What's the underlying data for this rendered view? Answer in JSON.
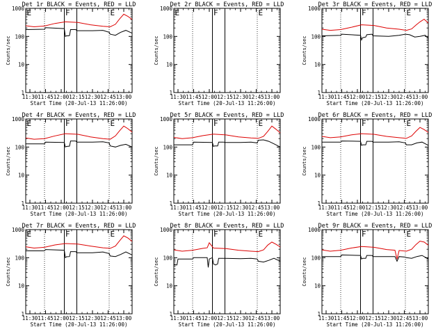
{
  "chart_data": [
    {
      "type": "line",
      "title": "Det 1r BLACK = Events, RED = LLD",
      "xlabel": "Start Time (20-Jul-13 11:26:00)",
      "ylabel": "Counts/sec",
      "x_ticks": [
        "11:30",
        "11:45",
        "12:00",
        "12:15",
        "12:30",
        "12:45",
        "13:00"
      ],
      "y_ticks": [
        "1",
        "10",
        "100",
        "1000"
      ],
      "ylim": [
        1,
        1000
      ],
      "y_scale": "log",
      "markers": [
        "E",
        "F",
        "E"
      ],
      "series": [
        {
          "color": "#000000",
          "x": [
            "11:26",
            "11:44",
            "11:45",
            "12:03",
            "12:04",
            "12:05",
            "12:07",
            "12:08",
            "12:09",
            "12:14",
            "12:15",
            "12:30",
            "12:40",
            "12:46",
            "12:47",
            "12:52",
            "12:57",
            "13:02",
            "13:08"
          ],
          "values": [
            175,
            180,
            205,
            190,
            100,
            105,
            105,
            108,
            175,
            175,
            160,
            160,
            165,
            140,
            120,
            110,
            140,
            165,
            130
          ]
        },
        {
          "color": "#dd0000",
          "x": [
            "11:26",
            "11:34",
            "11:44",
            "11:54",
            "12:04",
            "12:16",
            "12:28",
            "12:40",
            "12:47",
            "12:52",
            "12:56",
            "13:00",
            "13:04",
            "13:08"
          ],
          "values": [
            240,
            220,
            235,
            290,
            330,
            315,
            260,
            230,
            220,
            270,
            420,
            620,
            520,
            400
          ]
        }
      ]
    },
    {
      "type": "line",
      "title": "Det 2r BLACK = Events, RED = LLD",
      "xlabel": "Start Time (20-Jul-13 11:26:00)",
      "ylabel": "Counts/sec",
      "x_ticks": [
        "11:30",
        "11:45",
        "12:00",
        "12:15",
        "12:30",
        "12:45",
        "13:00"
      ],
      "y_ticks": [
        "1",
        "10",
        "100",
        "1000"
      ],
      "ylim": [
        1,
        1000
      ],
      "y_scale": "log",
      "markers": [
        "E",
        "F",
        "E"
      ],
      "series": []
    },
    {
      "type": "line",
      "title": "Det 3r BLACK = Events, RED = LLD",
      "xlabel": "Start Time (20-Jul-13 11:26:00)",
      "ylabel": "Counts/sec",
      "x_ticks": [
        "11:30",
        "11:45",
        "12:00",
        "12:15",
        "12:30",
        "12:45",
        "13:00"
      ],
      "y_ticks": [
        "1",
        "10",
        "100",
        "1000"
      ],
      "ylim": [
        1,
        1000
      ],
      "y_scale": "log",
      "markers": [
        "F",
        "E"
      ],
      "series": [
        {
          "color": "#000000",
          "x": [
            "11:26",
            "11:44",
            "11:45",
            "12:03",
            "12:04",
            "12:05",
            "12:08",
            "12:09",
            "12:14",
            "12:15",
            "12:30",
            "12:40",
            "12:46",
            "12:50",
            "12:55",
            "13:00",
            "13:05",
            "13:08"
          ],
          "values": [
            105,
            110,
            120,
            110,
            75,
            90,
            95,
            115,
            120,
            105,
            100,
            110,
            120,
            115,
            95,
            100,
            110,
            85
          ]
        },
        {
          "color": "#dd0000",
          "x": [
            "11:26",
            "11:34",
            "11:44",
            "11:54",
            "12:04",
            "12:16",
            "12:28",
            "12:40",
            "12:47",
            "12:52",
            "12:56",
            "13:00",
            "13:04",
            "13:08"
          ],
          "values": [
            180,
            165,
            175,
            210,
            260,
            245,
            200,
            180,
            165,
            185,
            250,
            330,
            410,
            300
          ]
        }
      ]
    },
    {
      "type": "line",
      "title": "Det 4r BLACK = Events, RED = LLD",
      "xlabel": "Start Time (20-Jul-13 11:26:00)",
      "ylabel": "Counts/sec",
      "x_ticks": [
        "11:30",
        "11:45",
        "12:00",
        "12:15",
        "12:30",
        "12:45",
        "13:00"
      ],
      "y_ticks": [
        "1",
        "10",
        "100",
        "1000"
      ],
      "ylim": [
        1,
        1000
      ],
      "y_scale": "log",
      "markers": [
        "E",
        "F",
        "E"
      ],
      "series": [
        {
          "color": "#000000",
          "x": [
            "11:26",
            "11:44",
            "11:45",
            "12:03",
            "12:04",
            "12:05",
            "12:08",
            "12:09",
            "12:14",
            "12:15",
            "12:30",
            "12:40",
            "12:46",
            "12:47",
            "12:52",
            "12:57",
            "13:02",
            "13:08"
          ],
          "values": [
            130,
            130,
            150,
            145,
            100,
            105,
            108,
            165,
            165,
            150,
            150,
            155,
            140,
            110,
            100,
            115,
            125,
            100
          ]
        },
        {
          "color": "#dd0000",
          "x": [
            "11:26",
            "11:34",
            "11:44",
            "11:54",
            "12:04",
            "12:16",
            "12:28",
            "12:40",
            "12:47",
            "12:52",
            "12:56",
            "13:00",
            "13:04",
            "13:08"
          ],
          "values": [
            210,
            190,
            200,
            250,
            300,
            285,
            230,
            200,
            190,
            250,
            380,
            560,
            450,
            340
          ]
        }
      ]
    },
    {
      "type": "line",
      "title": "Det 5r BLACK = Events, RED = LLD",
      "xlabel": "Start Time (20-Jul-13 11:26:00)",
      "ylabel": "Counts/sec",
      "x_ticks": [
        "11:30",
        "11:45",
        "12:00",
        "12:15",
        "12:30",
        "12:45",
        "13:00"
      ],
      "y_ticks": [
        "1",
        "10",
        "100",
        "1000"
      ],
      "ylim": [
        1,
        1000
      ],
      "y_scale": "log",
      "markers": [
        "F",
        "E"
      ],
      "series": [
        {
          "color": "#000000",
          "x": [
            "11:26",
            "11:44",
            "11:45",
            "12:03",
            "12:04",
            "12:05",
            "12:08",
            "12:09",
            "12:14",
            "12:15",
            "12:30",
            "12:40",
            "12:46",
            "12:47",
            "12:52",
            "12:57",
            "13:02",
            "13:08"
          ],
          "values": [
            120,
            120,
            150,
            145,
            105,
            110,
            110,
            150,
            150,
            145,
            145,
            150,
            140,
            175,
            180,
            160,
            130,
            100
          ]
        },
        {
          "color": "#dd0000",
          "x": [
            "11:26",
            "11:34",
            "11:44",
            "11:54",
            "12:04",
            "12:16",
            "12:28",
            "12:40",
            "12:47",
            "12:52",
            "12:56",
            "13:00",
            "13:04",
            "13:08"
          ],
          "values": [
            220,
            200,
            215,
            255,
            290,
            270,
            230,
            210,
            205,
            240,
            360,
            560,
            430,
            320
          ]
        }
      ]
    },
    {
      "type": "line",
      "title": "Det 6r BLACK = Events, RED = LLD",
      "xlabel": "Start Time (20-Jul-13 11:26:00)",
      "ylabel": "Counts/sec",
      "x_ticks": [
        "11:30",
        "11:45",
        "12:00",
        "12:15",
        "12:30",
        "12:45",
        "13:00"
      ],
      "y_ticks": [
        "1",
        "10",
        "100",
        "1000"
      ],
      "ylim": [
        1,
        1000
      ],
      "y_scale": "log",
      "markers": [
        "F",
        "E"
      ],
      "series": [
        {
          "color": "#000000",
          "x": [
            "11:26",
            "11:44",
            "11:45",
            "12:03",
            "12:04",
            "12:05",
            "12:08",
            "12:09",
            "12:14",
            "12:15",
            "12:30",
            "12:40",
            "12:46",
            "12:47",
            "12:52",
            "12:57",
            "13:02",
            "13:08"
          ],
          "values": [
            150,
            150,
            165,
            160,
            115,
            120,
            120,
            160,
            160,
            150,
            150,
            155,
            140,
            120,
            120,
            140,
            150,
            115
          ]
        },
        {
          "color": "#dd0000",
          "x": [
            "11:26",
            "11:34",
            "11:44",
            "11:54",
            "12:04",
            "12:16",
            "12:28",
            "12:40",
            "12:47",
            "12:52",
            "12:56",
            "13:00",
            "13:04",
            "13:08"
          ],
          "values": [
            240,
            215,
            230,
            270,
            300,
            285,
            240,
            215,
            205,
            250,
            360,
            500,
            420,
            330
          ]
        }
      ]
    },
    {
      "type": "line",
      "title": "Det 7r BLACK = Events, RED = LLD",
      "xlabel": "Start Time (20-Jul-13 11:26:00)",
      "ylabel": "Counts/sec",
      "x_ticks": [
        "11:30",
        "11:45",
        "12:00",
        "12:15",
        "12:30",
        "12:45",
        "13:00"
      ],
      "y_ticks": [
        "1",
        "10",
        "100",
        "1000"
      ],
      "ylim": [
        1,
        1000
      ],
      "y_scale": "log",
      "markers": [
        "E",
        "F",
        "E"
      ],
      "series": [
        {
          "color": "#000000",
          "x": [
            "11:26",
            "11:44",
            "11:45",
            "12:03",
            "12:04",
            "12:05",
            "12:08",
            "12:09",
            "12:14",
            "12:15",
            "12:30",
            "12:40",
            "12:46",
            "12:47",
            "12:52",
            "12:57",
            "13:02",
            "13:08"
          ],
          "values": [
            175,
            175,
            195,
            185,
            100,
            108,
            110,
            165,
            165,
            150,
            150,
            160,
            140,
            115,
            110,
            130,
            160,
            125
          ]
        },
        {
          "color": "#dd0000",
          "x": [
            "11:26",
            "11:34",
            "11:44",
            "11:54",
            "12:04",
            "12:16",
            "12:28",
            "12:40",
            "12:47",
            "12:52",
            "12:56",
            "13:00",
            "13:04",
            "13:08"
          ],
          "values": [
            245,
            220,
            235,
            285,
            320,
            305,
            260,
            225,
            215,
            260,
            400,
            600,
            500,
            380
          ]
        }
      ]
    },
    {
      "type": "line",
      "title": "Det 8r BLACK = Events, RED = LLD",
      "xlabel": "Start Time (20-Jul-13 11:26:00)",
      "ylabel": "Counts/sec",
      "x_ticks": [
        "11:30",
        "11:45",
        "12:00",
        "12:15",
        "12:30",
        "12:45",
        "13:00"
      ],
      "y_ticks": [
        "1",
        "10",
        "100",
        "1000"
      ],
      "ylim": [
        1,
        1000
      ],
      "y_scale": "log",
      "markers": [
        "F",
        "E"
      ],
      "series": [
        {
          "color": "#000000",
          "x": [
            "11:26",
            "11:27",
            "11:29",
            "11:30",
            "11:44",
            "11:45",
            "11:58",
            "11:59",
            "12:00",
            "12:03",
            "12:04",
            "12:06",
            "12:08",
            "12:09",
            "12:15",
            "12:30",
            "12:40",
            "12:46",
            "12:47",
            "12:52",
            "12:57",
            "13:02",
            "13:08"
          ],
          "values": [
            55,
            55,
            55,
            90,
            90,
            100,
            100,
            45,
            90,
            100,
            60,
            55,
            60,
            95,
            95,
            92,
            95,
            90,
            75,
            70,
            80,
            95,
            75
          ]
        },
        {
          "color": "#dd0000",
          "x": [
            "11:26",
            "11:34",
            "11:44",
            "11:54",
            "11:58",
            "12:00",
            "12:04",
            "12:16",
            "12:28",
            "12:40",
            "12:47",
            "12:52",
            "12:56",
            "13:00",
            "13:04",
            "13:08"
          ],
          "values": [
            190,
            170,
            185,
            215,
            225,
            340,
            220,
            210,
            185,
            170,
            165,
            190,
            280,
            360,
            300,
            240
          ]
        }
      ]
    },
    {
      "type": "line",
      "title": "Det 9r BLACK = Events, RED = LLD",
      "xlabel": "Start Time (20-Jul-13 11:26:00)",
      "ylabel": "Counts/sec",
      "x_ticks": [
        "11:30",
        "11:45",
        "12:00",
        "12:15",
        "12:30",
        "12:45",
        "13:00"
      ],
      "y_ticks": [
        "1",
        "10",
        "100",
        "1000"
      ],
      "ylim": [
        1,
        1000
      ],
      "y_scale": "log",
      "markers": [
        "F",
        "E"
      ],
      "series": [
        {
          "color": "#000000",
          "x": [
            "11:26",
            "11:44",
            "11:45",
            "12:03",
            "12:04",
            "12:05",
            "12:08",
            "12:09",
            "12:14",
            "12:15",
            "12:30",
            "12:36",
            "12:38",
            "12:40",
            "12:46",
            "12:47",
            "12:52",
            "12:57",
            "13:02",
            "13:08"
          ],
          "values": [
            110,
            110,
            125,
            120,
            90,
            95,
            95,
            120,
            120,
            110,
            110,
            110,
            75,
            110,
            105,
            100,
            95,
            110,
            120,
            90
          ]
        },
        {
          "color": "#dd0000",
          "x": [
            "11:26",
            "11:34",
            "11:44",
            "11:54",
            "12:04",
            "12:16",
            "12:28",
            "12:36",
            "12:38",
            "12:40",
            "12:47",
            "12:52",
            "12:56",
            "13:00",
            "13:04",
            "13:08"
          ],
          "values": [
            190,
            170,
            185,
            220,
            250,
            235,
            195,
            185,
            90,
            180,
            170,
            200,
            290,
            390,
            360,
            280
          ]
        }
      ]
    }
  ]
}
